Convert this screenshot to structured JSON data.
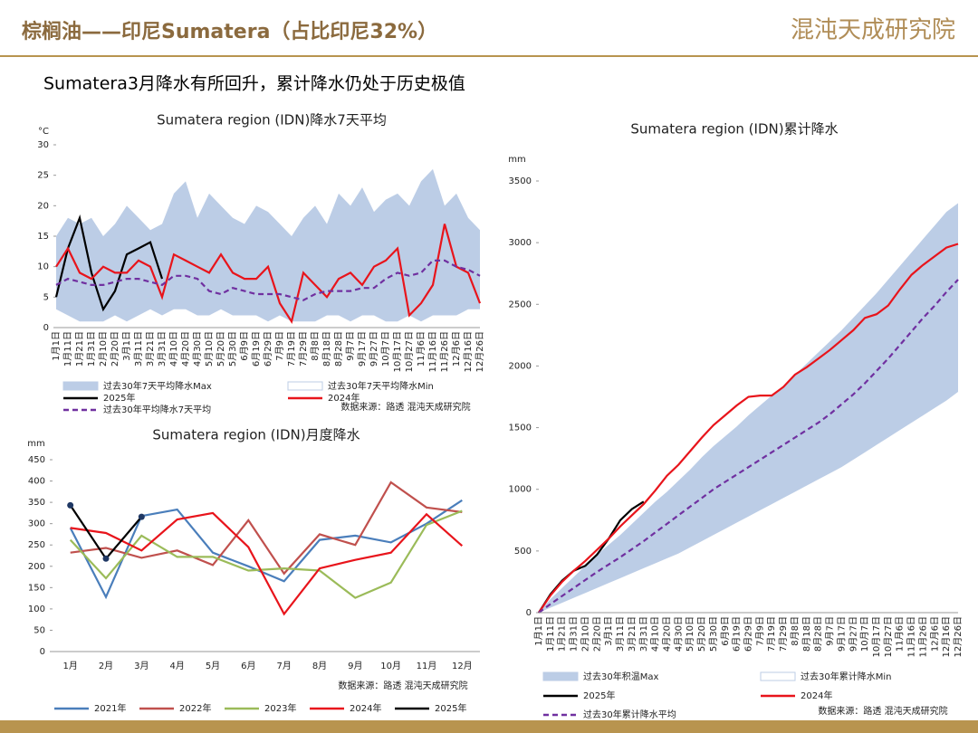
{
  "header": {
    "title": "棕榈油——印尼Sumatera（占比印尼32%）",
    "logo": "混沌天成研究院",
    "subtitle": "Sumatera3月降水有所回升，累计降水仍处于历史极值"
  },
  "chart_data": [
    {
      "type": "line",
      "title": "Sumatera region (IDN)降水7天平均",
      "y_unit": "°C",
      "source": "数据来源：路透 混沌天成研究院",
      "categories": [
        "1月1日",
        "1月11日",
        "1月21日",
        "1月31日",
        "2月10日",
        "2月20日",
        "3月1日",
        "3月11日",
        "3月21日",
        "3月31日",
        "4月10日",
        "4月20日",
        "4月30日",
        "5月10日",
        "5月20日",
        "5月30日",
        "6月9日",
        "6月19日",
        "6月29日",
        "7月9日",
        "7月19日",
        "7月29日",
        "8月8日",
        "8月18日",
        "8月28日",
        "9月7日",
        "9月17日",
        "9月27日",
        "10月7日",
        "10月17日",
        "10月27日",
        "11月6日",
        "11月16日",
        "11月26日",
        "12月6日",
        "12月16日",
        "12月26日"
      ],
      "ylim": [
        0,
        30
      ],
      "yticks": [
        0,
        5,
        10,
        15,
        20,
        25,
        30
      ],
      "series": [
        {
          "name": "过去30年7天平均降水Max",
          "color": "#bccde6",
          "fill": true,
          "values": [
            15,
            18,
            17,
            18,
            15,
            17,
            20,
            18,
            16,
            17,
            22,
            24,
            18,
            22,
            20,
            18,
            17,
            20,
            19,
            17,
            15,
            18,
            20,
            17,
            22,
            20,
            23,
            19,
            21,
            22,
            20,
            24,
            26,
            20,
            22,
            18,
            16
          ]
        },
        {
          "name": "过去30年7天平均降水Min",
          "color": "#ffffff",
          "fill": true,
          "values": [
            3,
            2,
            1,
            1,
            1,
            2,
            1,
            2,
            3,
            2,
            3,
            3,
            2,
            2,
            3,
            2,
            2,
            2,
            1,
            2,
            1,
            1,
            1,
            2,
            2,
            1,
            2,
            2,
            1,
            1,
            2,
            1,
            2,
            2,
            2,
            3,
            3
          ]
        },
        {
          "name": "2025年",
          "color": "#000000",
          "values": [
            5,
            13,
            18,
            9,
            3,
            6,
            12,
            13,
            14,
            8,
            null,
            null,
            null,
            null,
            null,
            null,
            null,
            null,
            null,
            null,
            null,
            null,
            null,
            null,
            null,
            null,
            null,
            null,
            null,
            null,
            null,
            null,
            null,
            null,
            null,
            null,
            null
          ]
        },
        {
          "name": "2024年",
          "color": "#e8141b",
          "values": [
            10,
            13,
            9,
            8,
            10,
            9,
            9,
            11,
            10,
            5,
            12,
            11,
            10,
            9,
            12,
            9,
            8,
            8,
            10,
            4,
            1,
            9,
            7,
            5,
            8,
            9,
            7,
            10,
            11,
            13,
            2,
            4,
            7,
            17,
            10,
            9,
            4
          ]
        },
        {
          "name": "过去30年平均降水7天平均",
          "color": "#7030a0",
          "dash": true,
          "values": [
            7,
            8,
            7.5,
            7,
            7,
            7.5,
            8,
            8,
            7.5,
            7,
            8.5,
            8.5,
            8,
            6,
            5.5,
            6.5,
            6,
            5.5,
            5.5,
            5.5,
            5,
            4.5,
            5.5,
            6,
            6,
            6,
            6.5,
            6.5,
            8,
            9,
            8.5,
            9,
            11,
            11,
            10,
            9.5,
            8.5
          ]
        }
      ]
    },
    {
      "type": "line",
      "title": "Sumatera region (IDN)月度降水",
      "y_unit": "mm",
      "source": "数据来源：路透 混沌天成研究院",
      "categories": [
        "1月",
        "2月",
        "3月",
        "4月",
        "5月",
        "6月",
        "7月",
        "8月",
        "9月",
        "10月",
        "11月",
        "12月"
      ],
      "ylim": [
        0,
        450
      ],
      "yticks": [
        0,
        50,
        100,
        150,
        200,
        250,
        300,
        350,
        400,
        450
      ],
      "series": [
        {
          "name": "2021年",
          "color": "#4a7ebb",
          "values": [
            290,
            128,
            318,
            333,
            232,
            200,
            165,
            262,
            272,
            256,
            300,
            355
          ]
        },
        {
          "name": "2022年",
          "color": "#c0504d",
          "values": [
            232,
            243,
            220,
            237,
            203,
            308,
            183,
            275,
            250,
            397,
            338,
            327
          ]
        },
        {
          "name": "2023年",
          "color": "#9bbb59",
          "values": [
            262,
            172,
            272,
            222,
            222,
            190,
            195,
            190,
            126,
            162,
            297,
            330
          ]
        },
        {
          "name": "2024年",
          "color": "#e8141b",
          "values": [
            290,
            278,
            237,
            310,
            325,
            245,
            88,
            195,
            215,
            232,
            322,
            248
          ]
        },
        {
          "name": "2025年",
          "color": "#000000",
          "marker": true,
          "values": [
            343,
            218,
            316,
            null,
            null,
            null,
            null,
            null,
            null,
            null,
            null,
            null
          ]
        }
      ]
    },
    {
      "type": "line",
      "title": "Sumatera region (IDN)累计降水",
      "y_unit": "mm",
      "source": "数据来源：路透 混沌天成研究院",
      "categories": [
        "1月1日",
        "1月11日",
        "1月21日",
        "1月31日",
        "2月10日",
        "2月20日",
        "3月1日",
        "3月11日",
        "3月21日",
        "3月31日",
        "4月10日",
        "4月20日",
        "4月30日",
        "5月10日",
        "5月20日",
        "5月30日",
        "6月9日",
        "6月19日",
        "6月29日",
        "7月9日",
        "7月19日",
        "7月29日",
        "8月8日",
        "8月18日",
        "8月28日",
        "9月7日",
        "9月17日",
        "9月27日",
        "10月7日",
        "10月17日",
        "10月27日",
        "11月6日",
        "11月16日",
        "11月26日",
        "12月6日",
        "12月16日",
        "12月26日"
      ],
      "ylim": [
        0,
        3500
      ],
      "yticks": [
        0,
        500,
        1000,
        1500,
        2000,
        2500,
        3000,
        3500
      ],
      "series": [
        {
          "name": "过去30年积温Max",
          "color": "#bccde6",
          "fill": true,
          "values": [
            0,
            110,
            200,
            290,
            380,
            470,
            550,
            630,
            720,
            810,
            900,
            980,
            1070,
            1160,
            1260,
            1350,
            1430,
            1510,
            1600,
            1680,
            1760,
            1840,
            1930,
            2020,
            2110,
            2200,
            2290,
            2390,
            2490,
            2590,
            2700,
            2810,
            2920,
            3030,
            3140,
            3250,
            3320
          ]
        },
        {
          "name": "过去30年累计降水Min",
          "color": "#ffffff",
          "fill": true,
          "values": [
            0,
            40,
            80,
            120,
            160,
            200,
            240,
            280,
            320,
            360,
            400,
            440,
            480,
            530,
            580,
            630,
            680,
            730,
            780,
            830,
            880,
            930,
            980,
            1030,
            1080,
            1130,
            1180,
            1240,
            1300,
            1360,
            1420,
            1480,
            1540,
            1600,
            1660,
            1720,
            1790
          ]
        },
        {
          "name": "2025年",
          "color": "#000000",
          "values": [
            0,
            150,
            260,
            340,
            380,
            470,
            600,
            750,
            840,
            900,
            null,
            null,
            null,
            null,
            null,
            null,
            null,
            null,
            null,
            null,
            null,
            null,
            null,
            null,
            null,
            null,
            null,
            null,
            null,
            null,
            null,
            null,
            null,
            null,
            null,
            null,
            null
          ]
        },
        {
          "name": "2024年",
          "color": "#e8141b",
          "values": [
            0,
            140,
            250,
            340,
            420,
            510,
            600,
            700,
            790,
            880,
            990,
            1110,
            1200,
            1310,
            1420,
            1520,
            1600,
            1680,
            1750,
            1760,
            1760,
            1830,
            1930,
            1990,
            2060,
            2130,
            2210,
            2290,
            2390,
            2420,
            2490,
            2620,
            2740,
            2820,
            2890,
            2960,
            2990
          ]
        },
        {
          "name": "过去30年累计降水平均",
          "color": "#7030a0",
          "dash": true,
          "values": [
            0,
            70,
            135,
            200,
            265,
            330,
            390,
            450,
            515,
            580,
            650,
            720,
            790,
            860,
            930,
            1000,
            1060,
            1120,
            1180,
            1240,
            1300,
            1360,
            1420,
            1480,
            1540,
            1610,
            1690,
            1770,
            1860,
            1960,
            2060,
            2170,
            2280,
            2390,
            2490,
            2600,
            2700
          ]
        }
      ]
    }
  ]
}
